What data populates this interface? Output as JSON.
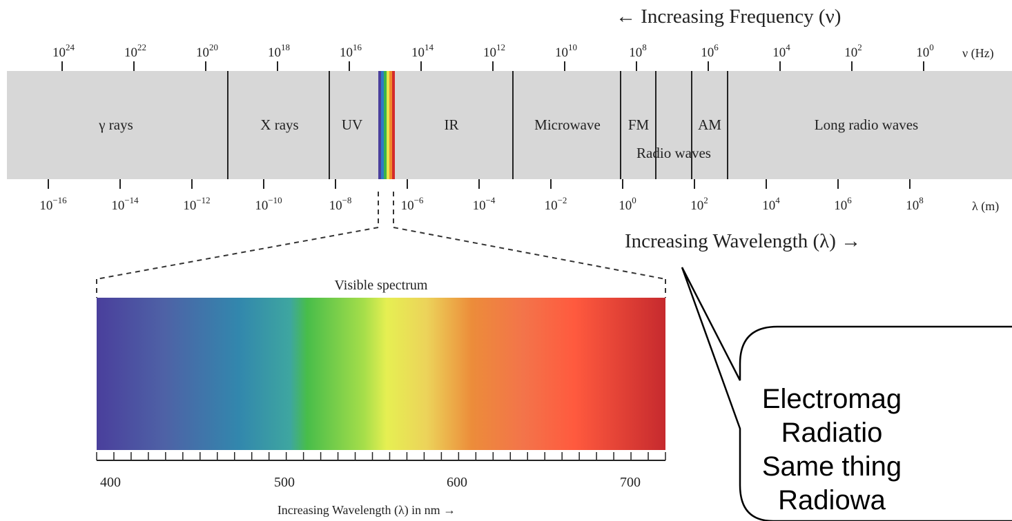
{
  "freq_header": "← Increasing Frequency (ν)",
  "freq_unit": "ν (Hz)",
  "freq_ticks": [
    {
      "base": "10",
      "exp": "24"
    },
    {
      "base": "10",
      "exp": "22"
    },
    {
      "base": "10",
      "exp": "20"
    },
    {
      "base": "10",
      "exp": "18"
    },
    {
      "base": "10",
      "exp": "16"
    },
    {
      "base": "10",
      "exp": "14"
    },
    {
      "base": "10",
      "exp": "12"
    },
    {
      "base": "10",
      "exp": "10"
    },
    {
      "base": "10",
      "exp": "8"
    },
    {
      "base": "10",
      "exp": "6"
    },
    {
      "base": "10",
      "exp": "4"
    },
    {
      "base": "10",
      "exp": "2"
    },
    {
      "base": "10",
      "exp": "0"
    }
  ],
  "wave_unit": "λ (m)",
  "wave_ticks": [
    {
      "base": "10",
      "exp": "−16"
    },
    {
      "base": "10",
      "exp": "−14"
    },
    {
      "base": "10",
      "exp": "−12"
    },
    {
      "base": "10",
      "exp": "−10"
    },
    {
      "base": "10",
      "exp": "−8"
    },
    {
      "base": "10",
      "exp": "−6"
    },
    {
      "base": "10",
      "exp": "−4"
    },
    {
      "base": "10",
      "exp": "−2"
    },
    {
      "base": "10",
      "exp": "0"
    },
    {
      "base": "10",
      "exp": "2"
    },
    {
      "base": "10",
      "exp": "4"
    },
    {
      "base": "10",
      "exp": "6"
    },
    {
      "base": "10",
      "exp": "8"
    }
  ],
  "wave_footer": "Increasing Wavelength (λ) →",
  "regions": {
    "gamma": "γ rays",
    "xray": "X rays",
    "uv": "UV",
    "ir": "IR",
    "microwave": "Microwave",
    "fm": "FM",
    "am": "AM",
    "radio": "Radio waves",
    "long_radio": "Long radio waves"
  },
  "visible": {
    "title": "Visible spectrum",
    "tick_labels": [
      "400",
      "500",
      "600",
      "700"
    ],
    "axis_label": "Increasing Wavelength (λ) in nm →"
  },
  "callout": {
    "lines": [
      "Electromag",
      "Radiatio",
      "Same thing",
      "Radiowa"
    ]
  },
  "colors": {
    "band": "#d7d7d7",
    "line": "#222222",
    "spectrum": [
      "#4a3f9c",
      "#3a88b0",
      "#46b84c",
      "#e4ee4e",
      "#f08a3a",
      "#ff5b3c",
      "#c4222a"
    ]
  }
}
